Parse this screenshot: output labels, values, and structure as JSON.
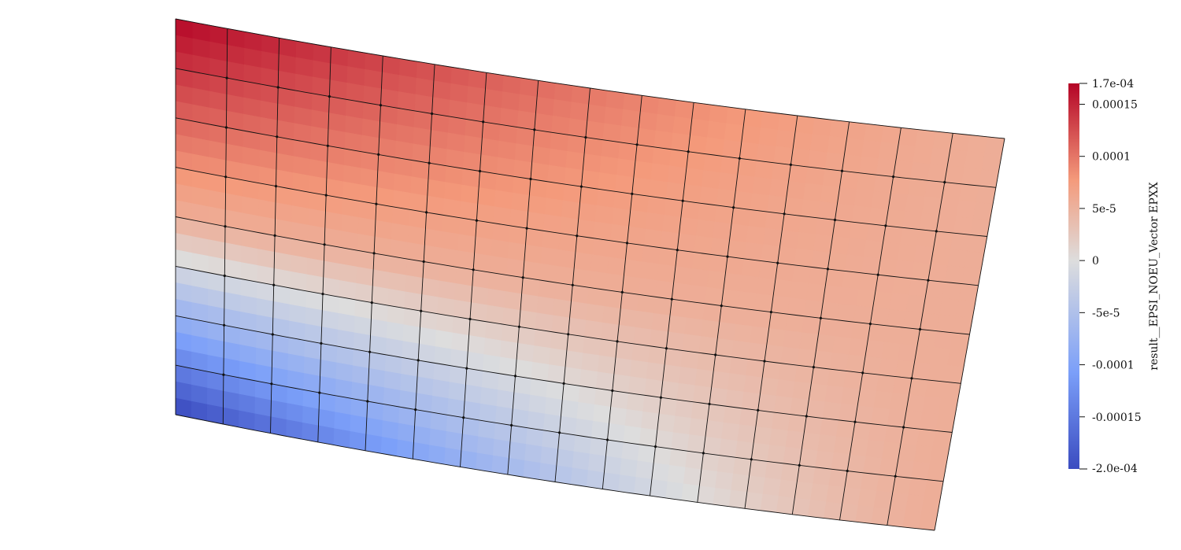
{
  "field": {
    "name": "result__EPSI_NOEU_Vector EPXX",
    "min": -0.0002,
    "max": 0.00017
  },
  "mesh": {
    "columns": 16,
    "rows": 8
  },
  "color_map": {
    "low": "#3b4cc0",
    "mid": "#dddddd",
    "high": "#b40426"
  },
  "scalar_bar": {
    "title": "result__EPSI_NOEU_Vector EPXX",
    "max_label": "1.7e-04",
    "min_label": "-2.0e-04",
    "ticks": [
      {
        "value": 0.00015,
        "label": "0.00015"
      },
      {
        "value": 0.0001,
        "label": "0.0001"
      },
      {
        "value": 5e-05,
        "label": "5e-5"
      },
      {
        "value": 0,
        "label": "0"
      },
      {
        "value": -5e-05,
        "label": "-5e-5"
      },
      {
        "value": -0.0001,
        "label": "-0.0001"
      },
      {
        "value": -0.00015,
        "label": "-0.00015"
      }
    ]
  }
}
